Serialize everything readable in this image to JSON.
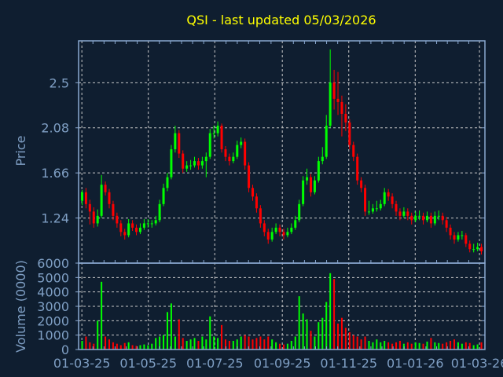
{
  "chart_data": {
    "type": "candlestick",
    "title": "QSI - last updated 05/03/2026",
    "price_panel": {
      "ylabel": "Price",
      "ylim": [
        0.82,
        2.89
      ],
      "yticks": [
        1.24,
        1.66,
        2.08,
        2.5
      ],
      "ytick_labels": [
        "1.24",
        "1.66",
        "2.08",
        "2.5"
      ]
    },
    "volume_panel": {
      "ylabel": "Volume (0000)",
      "ylim": [
        0,
        6000
      ],
      "yticks": [
        0,
        1000,
        2000,
        3000,
        4000,
        5000,
        6000
      ],
      "ytick_labels": [
        "0",
        "1000",
        "2000",
        "3000",
        "4000",
        "5000",
        "6000"
      ]
    },
    "x_range": [
      "2025-02-26",
      "2026-03-06"
    ],
    "xticks": [
      "2025-03-01",
      "2025-05-01",
      "2025-07-01",
      "2025-09-01",
      "2025-11-01",
      "2026-01-01",
      "2026-03-01"
    ],
    "xtick_labels": [
      "01-03-25",
      "01-05-25",
      "01-07-25",
      "01-09-25",
      "01-11-25",
      "01-01-26",
      "01-03-26"
    ],
    "grid": true,
    "up_color": "#00ff00",
    "down_color": "#ff0000",
    "candle_fields": [
      "open",
      "high",
      "low",
      "close",
      "volume"
    ],
    "candles": [
      [
        1.4,
        1.5,
        1.36,
        1.48,
        600
      ],
      [
        1.48,
        1.52,
        1.33,
        1.37,
        900
      ],
      [
        1.37,
        1.41,
        1.18,
        1.3,
        500
      ],
      [
        1.3,
        1.34,
        1.15,
        1.19,
        400
      ],
      [
        1.19,
        1.32,
        1.16,
        1.26,
        2000
      ],
      [
        1.26,
        1.64,
        1.24,
        1.55,
        4700
      ],
      [
        1.55,
        1.58,
        1.45,
        1.48,
        900
      ],
      [
        1.48,
        1.51,
        1.33,
        1.37,
        700
      ],
      [
        1.37,
        1.4,
        1.22,
        1.26,
        500
      ],
      [
        1.26,
        1.29,
        1.15,
        1.19,
        400
      ],
      [
        1.19,
        1.22,
        1.07,
        1.11,
        300
      ],
      [
        1.11,
        1.14,
        1.04,
        1.08,
        450
      ],
      [
        1.08,
        1.23,
        1.06,
        1.19,
        500
      ],
      [
        1.19,
        1.22,
        1.12,
        1.15,
        300
      ],
      [
        1.15,
        1.18,
        1.08,
        1.11,
        250
      ],
      [
        1.11,
        1.19,
        1.09,
        1.15,
        300
      ],
      [
        1.15,
        1.23,
        1.13,
        1.19,
        350
      ],
      [
        1.19,
        1.23,
        1.15,
        1.19,
        300
      ],
      [
        1.19,
        1.22,
        1.15,
        1.19,
        400
      ],
      [
        1.19,
        1.26,
        1.17,
        1.22,
        800
      ],
      [
        1.22,
        1.41,
        1.2,
        1.37,
        900
      ],
      [
        1.37,
        1.56,
        1.35,
        1.52,
        1000
      ],
      [
        1.52,
        1.66,
        1.49,
        1.62,
        2600
      ],
      [
        1.62,
        1.92,
        1.6,
        1.88,
        3200
      ],
      [
        1.88,
        2.1,
        1.85,
        2.03,
        900
      ],
      [
        2.03,
        2.06,
        1.8,
        1.84,
        2100
      ],
      [
        1.84,
        1.87,
        1.66,
        1.7,
        800
      ],
      [
        1.7,
        1.77,
        1.67,
        1.73,
        600
      ],
      [
        1.73,
        1.78,
        1.69,
        1.73,
        700
      ],
      [
        1.73,
        1.81,
        1.71,
        1.77,
        800
      ],
      [
        1.77,
        1.8,
        1.69,
        1.73,
        600
      ],
      [
        1.73,
        1.81,
        1.7,
        1.77,
        900
      ],
      [
        1.77,
        1.85,
        1.62,
        1.81,
        700
      ],
      [
        1.81,
        2.07,
        1.79,
        2.03,
        2300
      ],
      [
        2.03,
        2.1,
        1.98,
        2.03,
        900
      ],
      [
        2.03,
        2.14,
        2.0,
        2.1,
        800
      ],
      [
        2.1,
        2.12,
        1.85,
        1.88,
        1700
      ],
      [
        1.88,
        1.91,
        1.77,
        1.81,
        700
      ],
      [
        1.81,
        1.84,
        1.73,
        1.77,
        600
      ],
      [
        1.77,
        1.85,
        1.75,
        1.81,
        600
      ],
      [
        1.81,
        1.96,
        1.79,
        1.92,
        700
      ],
      [
        1.92,
        1.99,
        1.89,
        1.95,
        900
      ],
      [
        1.95,
        1.98,
        1.69,
        1.73,
        1000
      ],
      [
        1.73,
        1.76,
        1.48,
        1.52,
        900
      ],
      [
        1.52,
        1.55,
        1.4,
        1.44,
        700
      ],
      [
        1.44,
        1.47,
        1.29,
        1.33,
        800
      ],
      [
        1.33,
        1.36,
        1.15,
        1.19,
        900
      ],
      [
        1.19,
        1.22,
        1.07,
        1.11,
        700
      ],
      [
        1.11,
        1.14,
        1.0,
        1.04,
        900
      ],
      [
        1.04,
        1.15,
        1.02,
        1.11,
        700
      ],
      [
        1.11,
        1.19,
        1.09,
        1.15,
        500
      ],
      [
        1.15,
        1.18,
        1.07,
        1.11,
        400
      ],
      [
        1.11,
        1.14,
        1.04,
        1.08,
        350
      ],
      [
        1.08,
        1.15,
        1.06,
        1.11,
        400
      ],
      [
        1.11,
        1.19,
        1.09,
        1.15,
        600
      ],
      [
        1.15,
        1.26,
        1.13,
        1.22,
        900
      ],
      [
        1.22,
        1.41,
        1.2,
        1.37,
        3700
      ],
      [
        1.37,
        1.63,
        1.35,
        1.59,
        2500
      ],
      [
        1.59,
        1.7,
        1.55,
        1.62,
        2100
      ],
      [
        1.62,
        1.65,
        1.44,
        1.48,
        1300
      ],
      [
        1.48,
        1.63,
        1.46,
        1.59,
        900
      ],
      [
        1.59,
        1.81,
        1.57,
        1.77,
        1900
      ],
      [
        1.77,
        1.9,
        1.74,
        1.81,
        2200
      ],
      [
        1.81,
        2.2,
        1.79,
        2.1,
        3300
      ],
      [
        2.1,
        2.81,
        2.08,
        2.5,
        5300
      ],
      [
        2.5,
        2.62,
        2.25,
        2.35,
        4900
      ],
      [
        2.35,
        2.6,
        2.2,
        2.32,
        1800
      ],
      [
        2.32,
        2.38,
        2.0,
        2.21,
        2200
      ],
      [
        2.21,
        2.3,
        2.05,
        2.13,
        1500
      ],
      [
        2.13,
        2.16,
        1.88,
        1.92,
        1200
      ],
      [
        1.92,
        1.95,
        1.77,
        1.81,
        1000
      ],
      [
        1.81,
        1.84,
        1.55,
        1.59,
        900
      ],
      [
        1.59,
        1.62,
        1.48,
        1.52,
        700
      ],
      [
        1.52,
        1.55,
        1.26,
        1.3,
        900
      ],
      [
        1.3,
        1.4,
        1.27,
        1.3,
        600
      ],
      [
        1.3,
        1.37,
        1.28,
        1.33,
        500
      ],
      [
        1.33,
        1.4,
        1.3,
        1.33,
        700
      ],
      [
        1.33,
        1.41,
        1.31,
        1.37,
        500
      ],
      [
        1.37,
        1.52,
        1.35,
        1.48,
        600
      ],
      [
        1.48,
        1.51,
        1.4,
        1.44,
        500
      ],
      [
        1.44,
        1.47,
        1.33,
        1.37,
        400
      ],
      [
        1.37,
        1.4,
        1.26,
        1.3,
        500
      ],
      [
        1.3,
        1.33,
        1.22,
        1.26,
        600
      ],
      [
        1.26,
        1.34,
        1.24,
        1.3,
        400
      ],
      [
        1.3,
        1.33,
        1.22,
        1.26,
        500
      ],
      [
        1.26,
        1.29,
        1.18,
        1.22,
        400
      ],
      [
        1.22,
        1.3,
        1.2,
        1.26,
        500
      ],
      [
        1.26,
        1.31,
        1.22,
        1.26,
        450
      ],
      [
        1.26,
        1.29,
        1.18,
        1.22,
        400
      ],
      [
        1.22,
        1.3,
        1.2,
        1.26,
        550
      ],
      [
        1.26,
        1.29,
        1.15,
        1.19,
        800
      ],
      [
        1.19,
        1.3,
        1.17,
        1.26,
        500
      ],
      [
        1.26,
        1.31,
        1.22,
        1.26,
        450
      ],
      [
        1.26,
        1.29,
        1.18,
        1.22,
        400
      ],
      [
        1.22,
        1.25,
        1.11,
        1.15,
        500
      ],
      [
        1.15,
        1.18,
        1.04,
        1.08,
        600
      ],
      [
        1.08,
        1.11,
        1.0,
        1.04,
        700
      ],
      [
        1.04,
        1.11,
        1.02,
        1.08,
        500
      ],
      [
        1.08,
        1.12,
        1.04,
        1.08,
        400
      ],
      [
        1.08,
        1.1,
        0.97,
        1.0,
        500
      ],
      [
        1.0,
        1.03,
        0.92,
        0.95,
        450
      ],
      [
        0.95,
        1.0,
        0.92,
        0.95,
        300
      ],
      [
        0.95,
        1.01,
        0.93,
        0.97,
        350
      ],
      [
        0.97,
        1.0,
        0.9,
        0.93,
        500
      ]
    ]
  }
}
